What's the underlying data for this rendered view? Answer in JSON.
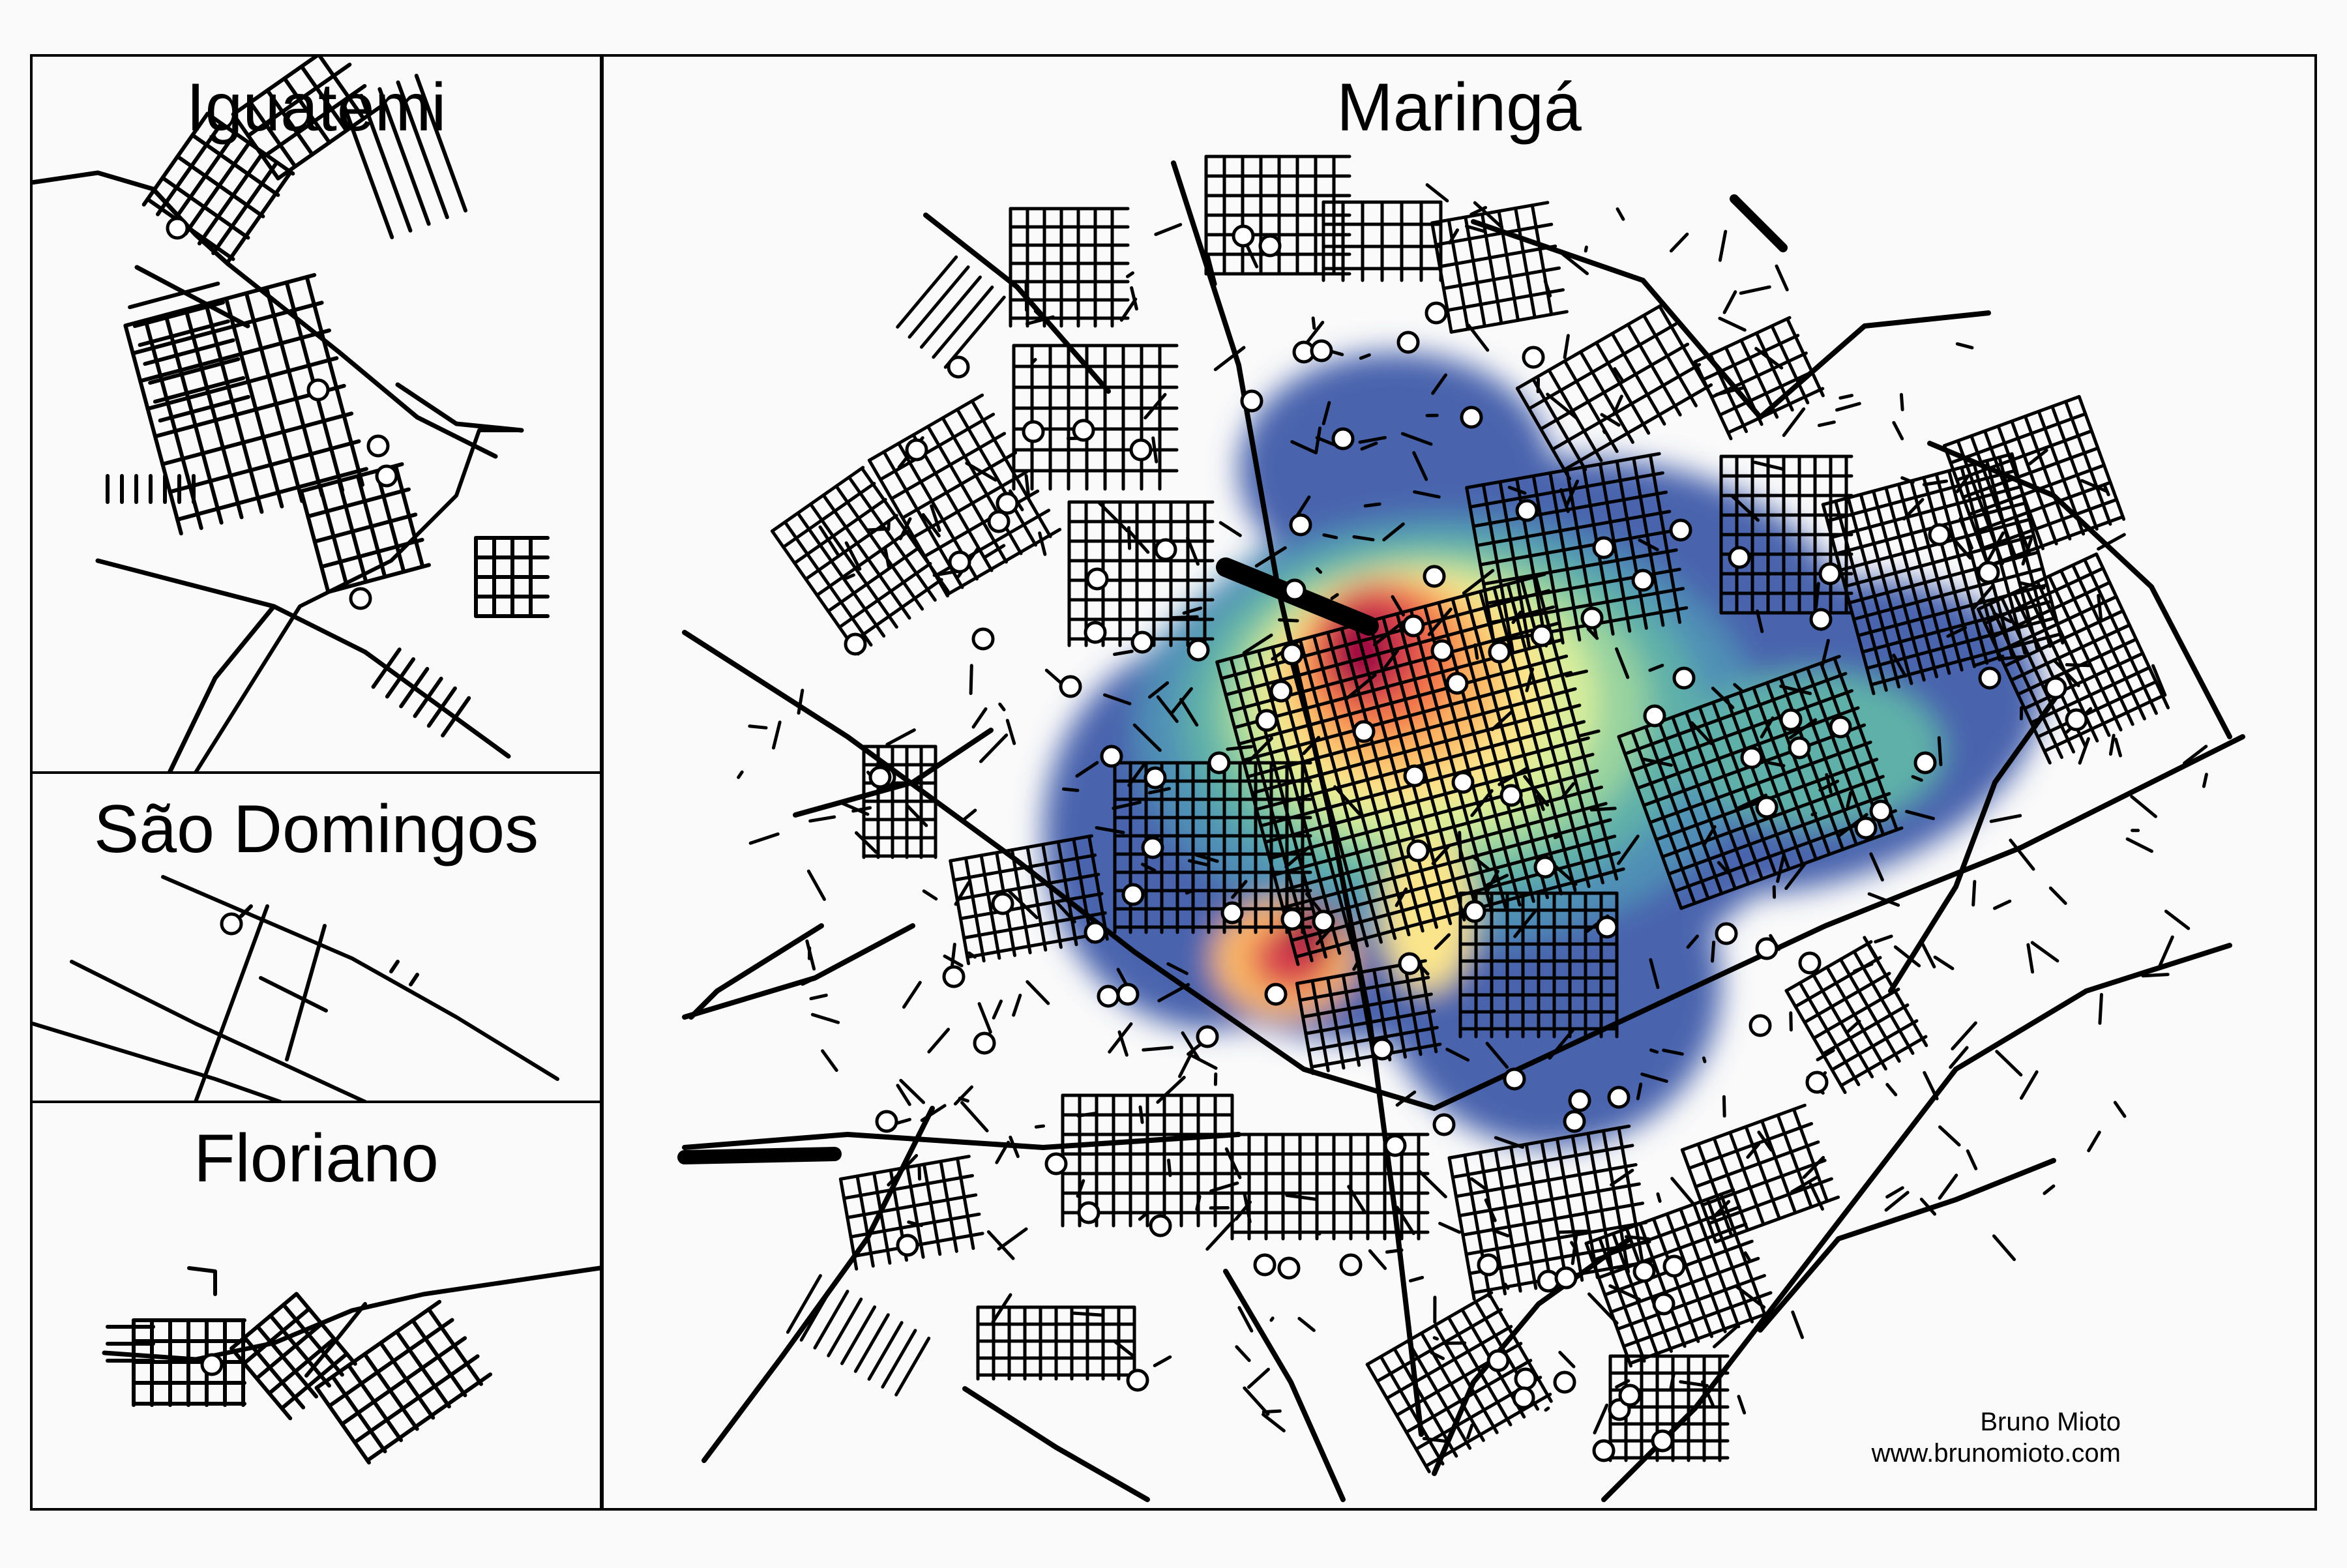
{
  "panels": {
    "iguatemi": {
      "title": "Iguatemi"
    },
    "sao_domingos": {
      "title": "São Domingos"
    },
    "floriano": {
      "title": "Floriano"
    },
    "maringa": {
      "title": "Maringá"
    }
  },
  "credit": {
    "author": "Bruno Mioto",
    "url": "www.brunomioto.com"
  },
  "colors": {
    "background": "#fafafa",
    "frame": "#000000",
    "roads": "#000000",
    "points_fill": "#ffffff",
    "density_scale": [
      "#4a64ad",
      "#4f8fb6",
      "#5fb0a9",
      "#98d39f",
      "#d8ee9b",
      "#fbe58c",
      "#fbb865",
      "#f3784b",
      "#d9424d",
      "#9e0142"
    ]
  },
  "legend": {
    "visible": false
  }
}
